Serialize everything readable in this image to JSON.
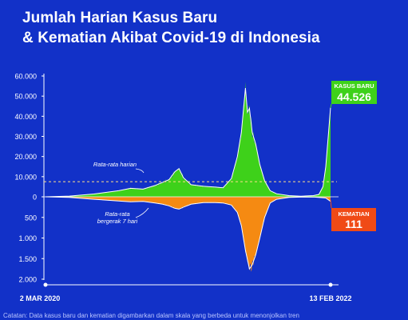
{
  "title_line1": "Jumlah Harian Kasus Baru",
  "title_line2": "& Kematian Akibat Covid-19 di Indonesia",
  "footnote": "Catatan: Data kasus baru dan kematian digambarkan dalam skala yang berbeda untuk menonjolkan tren",
  "colors": {
    "background": "#1231c8",
    "cases": "#3ed11a",
    "deaths": "#f58a12",
    "cases_label_bg": "#3ed11a",
    "deaths_label_bg": "#f04a16",
    "average_line": "#ffe08a"
  },
  "chart_data": {
    "type": "area",
    "title": "Jumlah Harian Kasus Baru & Kematian Akibat Covid-19 di Indonesia",
    "x_labels": {
      "start": "2 MAR 2020",
      "end": "13 FEB 2022"
    },
    "x_range": [
      "2020-03-02",
      "2022-02-13"
    ],
    "y_cases_ticks": [
      "60.000",
      "50.000",
      "40.000",
      "30.000",
      "20.000",
      "10.000",
      "0"
    ],
    "y_deaths_ticks": [
      "500",
      "1.000",
      "1.500",
      "2.000"
    ],
    "y_cases_range": [
      0,
      60000
    ],
    "y_deaths_range": [
      0,
      2000
    ],
    "baseline_avg_cases": 7500,
    "annotations": {
      "avg_daily": "Rata-rata harian",
      "moving_avg": "Rata-rata bergerak 7 hari"
    },
    "series": [
      {
        "name": "Kasus Baru",
        "points": [
          [
            "2020-03-02",
            0
          ],
          [
            "2020-05-01",
            350
          ],
          [
            "2020-07-01",
            1400
          ],
          [
            "2020-09-01",
            3000
          ],
          [
            "2020-10-01",
            4200
          ],
          [
            "2020-11-01",
            3800
          ],
          [
            "2020-12-01",
            5600
          ],
          [
            "2020-12-20",
            7200
          ],
          [
            "2021-01-05",
            8500
          ],
          [
            "2021-01-20",
            12500
          ],
          [
            "2021-01-30",
            14000
          ],
          [
            "2021-02-10",
            9500
          ],
          [
            "2021-03-01",
            6000
          ],
          [
            "2021-04-01",
            5200
          ],
          [
            "2021-05-01",
            4800
          ],
          [
            "2021-05-20",
            4500
          ],
          [
            "2021-06-10",
            9000
          ],
          [
            "2021-06-25",
            20000
          ],
          [
            "2021-07-05",
            32000
          ],
          [
            "2021-07-15",
            54000
          ],
          [
            "2021-07-20",
            42000
          ],
          [
            "2021-07-25",
            44000
          ],
          [
            "2021-08-01",
            32000
          ],
          [
            "2021-08-10",
            26000
          ],
          [
            "2021-08-20",
            16000
          ],
          [
            "2021-09-01",
            8000
          ],
          [
            "2021-09-15",
            3000
          ],
          [
            "2021-10-01",
            1500
          ],
          [
            "2021-11-01",
            600
          ],
          [
            "2021-12-01",
            300
          ],
          [
            "2022-01-01",
            600
          ],
          [
            "2022-01-15",
            1200
          ],
          [
            "2022-01-25",
            5000
          ],
          [
            "2022-02-01",
            15000
          ],
          [
            "2022-02-08",
            32000
          ],
          [
            "2022-02-13",
            44526
          ]
        ]
      },
      {
        "name": "Kematian",
        "points": [
          [
            "2020-03-02",
            0
          ],
          [
            "2020-05-01",
            15
          ],
          [
            "2020-07-01",
            60
          ],
          [
            "2020-09-01",
            100
          ],
          [
            "2020-10-01",
            120
          ],
          [
            "2020-11-01",
            110
          ],
          [
            "2020-12-01",
            150
          ],
          [
            "2020-12-20",
            180
          ],
          [
            "2021-01-05",
            220
          ],
          [
            "2021-01-20",
            280
          ],
          [
            "2021-01-30",
            300
          ],
          [
            "2021-02-10",
            250
          ],
          [
            "2021-03-01",
            180
          ],
          [
            "2021-04-01",
            140
          ],
          [
            "2021-05-01",
            140
          ],
          [
            "2021-05-20",
            150
          ],
          [
            "2021-06-10",
            200
          ],
          [
            "2021-06-25",
            380
          ],
          [
            "2021-07-05",
            700
          ],
          [
            "2021-07-15",
            1300
          ],
          [
            "2021-07-25",
            1750
          ],
          [
            "2021-08-01",
            1650
          ],
          [
            "2021-08-10",
            1400
          ],
          [
            "2021-08-20",
            1000
          ],
          [
            "2021-09-01",
            500
          ],
          [
            "2021-09-15",
            150
          ],
          [
            "2021-10-01",
            60
          ],
          [
            "2021-11-01",
            15
          ],
          [
            "2021-12-01",
            8
          ],
          [
            "2022-01-01",
            6
          ],
          [
            "2022-02-01",
            30
          ],
          [
            "2022-02-13",
            111
          ]
        ]
      }
    ],
    "callouts": [
      {
        "label": "KASUS BARU",
        "value": "44.526"
      },
      {
        "label": "KEMATIAN",
        "value": "111"
      }
    ]
  }
}
